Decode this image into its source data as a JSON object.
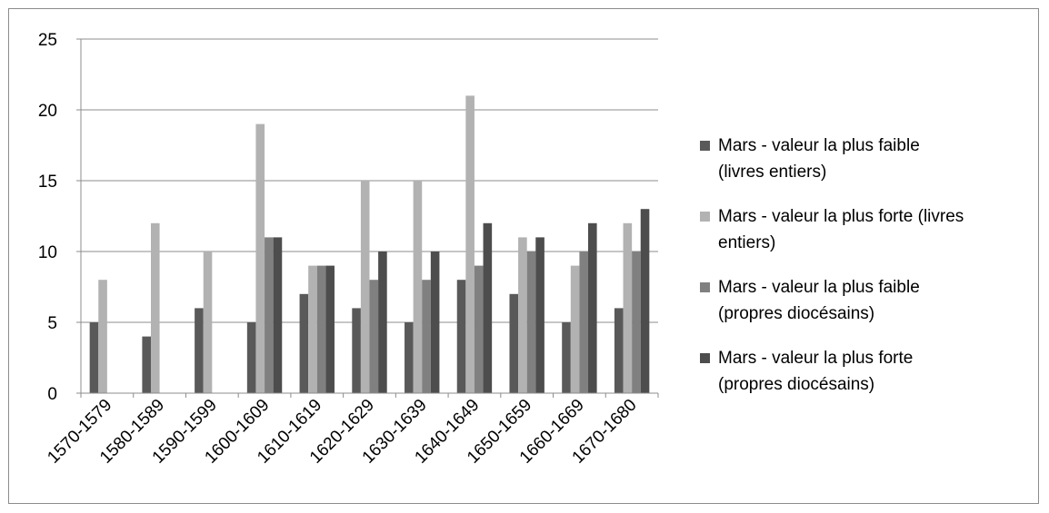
{
  "chart_data": {
    "type": "bar",
    "categories": [
      "1570-1579",
      "1580-1589",
      "1590-1599",
      "1600-1609",
      "1610-1619",
      "1620-1629",
      "1630-1639",
      "1640-1649",
      "1650-1659",
      "1660-1669",
      "1670-1680"
    ],
    "series": [
      {
        "name": "Mars - valeur la plus faible (livres entiers)",
        "legend_lines": [
          "Mars - valeur la plus faible",
          "(livres entiers)"
        ],
        "color": "#595959",
        "values": [
          5,
          4,
          6,
          5,
          7,
          6,
          5,
          8,
          7,
          5,
          6
        ]
      },
      {
        "name": "Mars - valeur la plus forte (livres entiers)",
        "legend_lines": [
          "Mars - valeur la plus forte (livres",
          "entiers)"
        ],
        "color": "#b2b2b2",
        "values": [
          8,
          12,
          10,
          19,
          9,
          15,
          15,
          21,
          11,
          9,
          12
        ]
      },
      {
        "name": "Mars - valeur la plus faible (propres diocésains)",
        "legend_lines": [
          "Mars - valeur la plus faible",
          "(propres diocésains)"
        ],
        "color": "#808080",
        "values": [
          null,
          null,
          null,
          11,
          9,
          8,
          8,
          9,
          10,
          10,
          10
        ]
      },
      {
        "name": "Mars - valeur la plus forte (propres diocésains)",
        "legend_lines": [
          "Mars - valeur la plus forte",
          "(propres diocésains)"
        ],
        "color": "#4d4d4d",
        "values": [
          null,
          null,
          null,
          11,
          9,
          10,
          10,
          12,
          11,
          12,
          13
        ]
      }
    ],
    "y_ticks": [
      "0",
      "5",
      "10",
      "15",
      "20",
      "25"
    ],
    "ylim": [
      0,
      25
    ],
    "grid": true,
    "legend_position": "right"
  }
}
